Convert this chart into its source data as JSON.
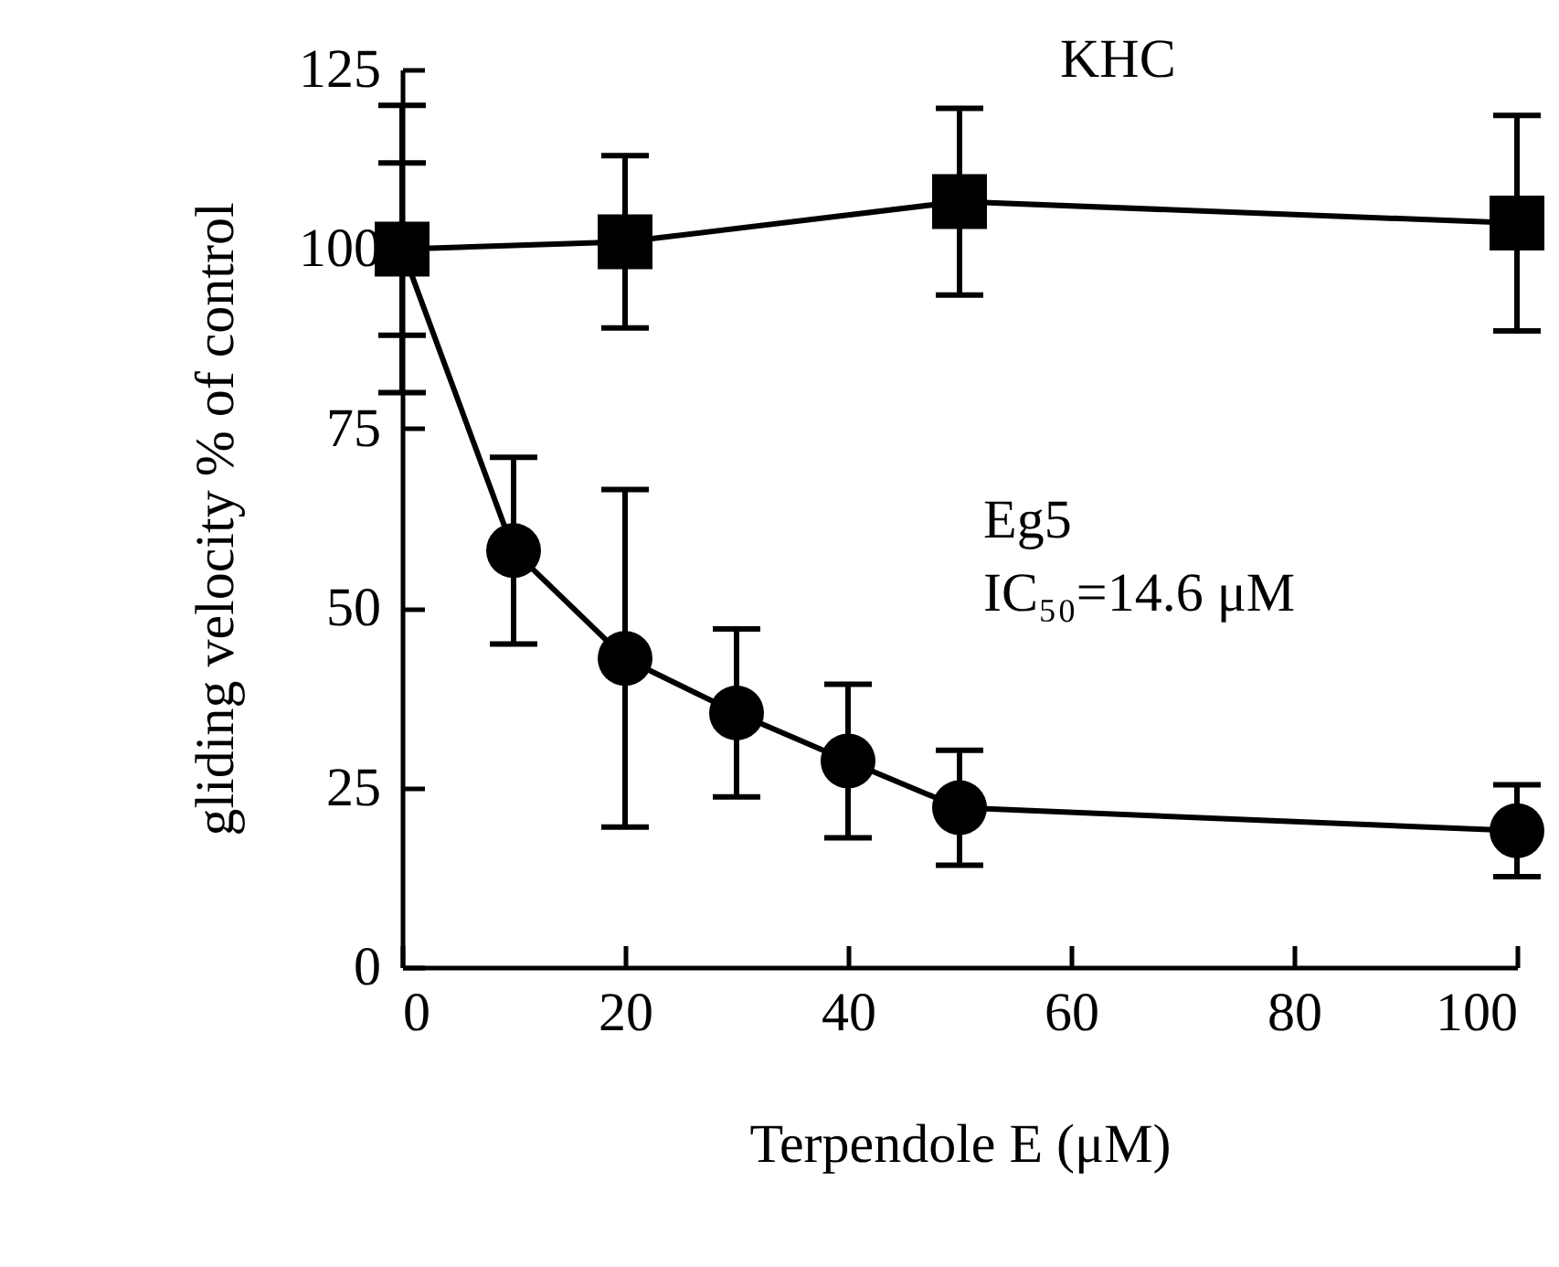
{
  "chart_data": {
    "type": "line",
    "xlabel": "Terpendole E (μM)",
    "ylabel": "gliding velocity % of control",
    "annotations": [
      "KHC",
      "Eg5",
      "IC₅₀=14.6 μM"
    ],
    "series": [
      {
        "color": "#000000",
        "marker": "square",
        "x": [
          0,
          20,
          50,
          100
        ],
        "values": [
          100,
          101,
          106.6,
          103.6
        ],
        "errors": [
          20,
          12,
          13,
          15
        ]
      },
      {
        "color": "#000000",
        "marker": "circle",
        "x": [
          0,
          10,
          20,
          30,
          40,
          50,
          100
        ],
        "values": [
          100,
          58,
          43,
          35.4,
          28.7,
          22.2,
          19
        ],
        "errors": [
          12,
          13,
          23.5,
          11.7,
          10.7,
          8,
          6.4
        ]
      }
    ],
    "xlim": [
      0,
      100
    ],
    "xticks": [
      0,
      20,
      40,
      60,
      80,
      100
    ],
    "ylim": [
      0,
      125
    ],
    "yticks": [
      0,
      25,
      50,
      75,
      100,
      125
    ],
    "grid": false,
    "legend": false,
    "line_style": "solid"
  }
}
